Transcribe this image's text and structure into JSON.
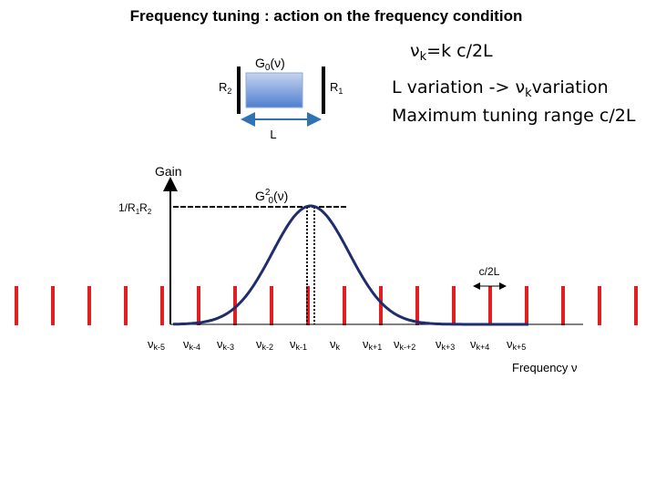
{
  "title": "Frequency tuning : action on the frequency condition",
  "cavity": {
    "gain_label": [
      "G",
      "0",
      "(ν)"
    ],
    "mirror_left": [
      "R",
      "2"
    ],
    "mirror_right": [
      "R",
      "1"
    ],
    "length": "L"
  },
  "condition": [
    "ν",
    "k",
    "=k c/2L"
  ],
  "notes": [
    [
      "L variation -> ν",
      "k",
      "variation"
    ],
    "Maximum tuning range c/2L"
  ],
  "plot": {
    "y_label": "Gain",
    "level": [
      "1/R",
      "1",
      "R",
      "2"
    ],
    "curve_label": [
      "G",
      "2",
      "0",
      "(ν)"
    ],
    "spacing": "c/2L",
    "x_label": "Frequency ν",
    "modes": [
      [
        "ν",
        "k-5"
      ],
      [
        "ν",
        "k-4"
      ],
      [
        "ν",
        "k-3"
      ],
      [
        "ν",
        "k-2"
      ],
      [
        "ν",
        "k-1"
      ],
      [
        "ν",
        "k"
      ],
      [
        "ν",
        "k+1"
      ],
      [
        "ν",
        "k-+2"
      ],
      [
        "ν",
        "k+3"
      ],
      [
        "ν",
        "k+4"
      ],
      [
        "ν",
        "k+5"
      ]
    ]
  }
}
